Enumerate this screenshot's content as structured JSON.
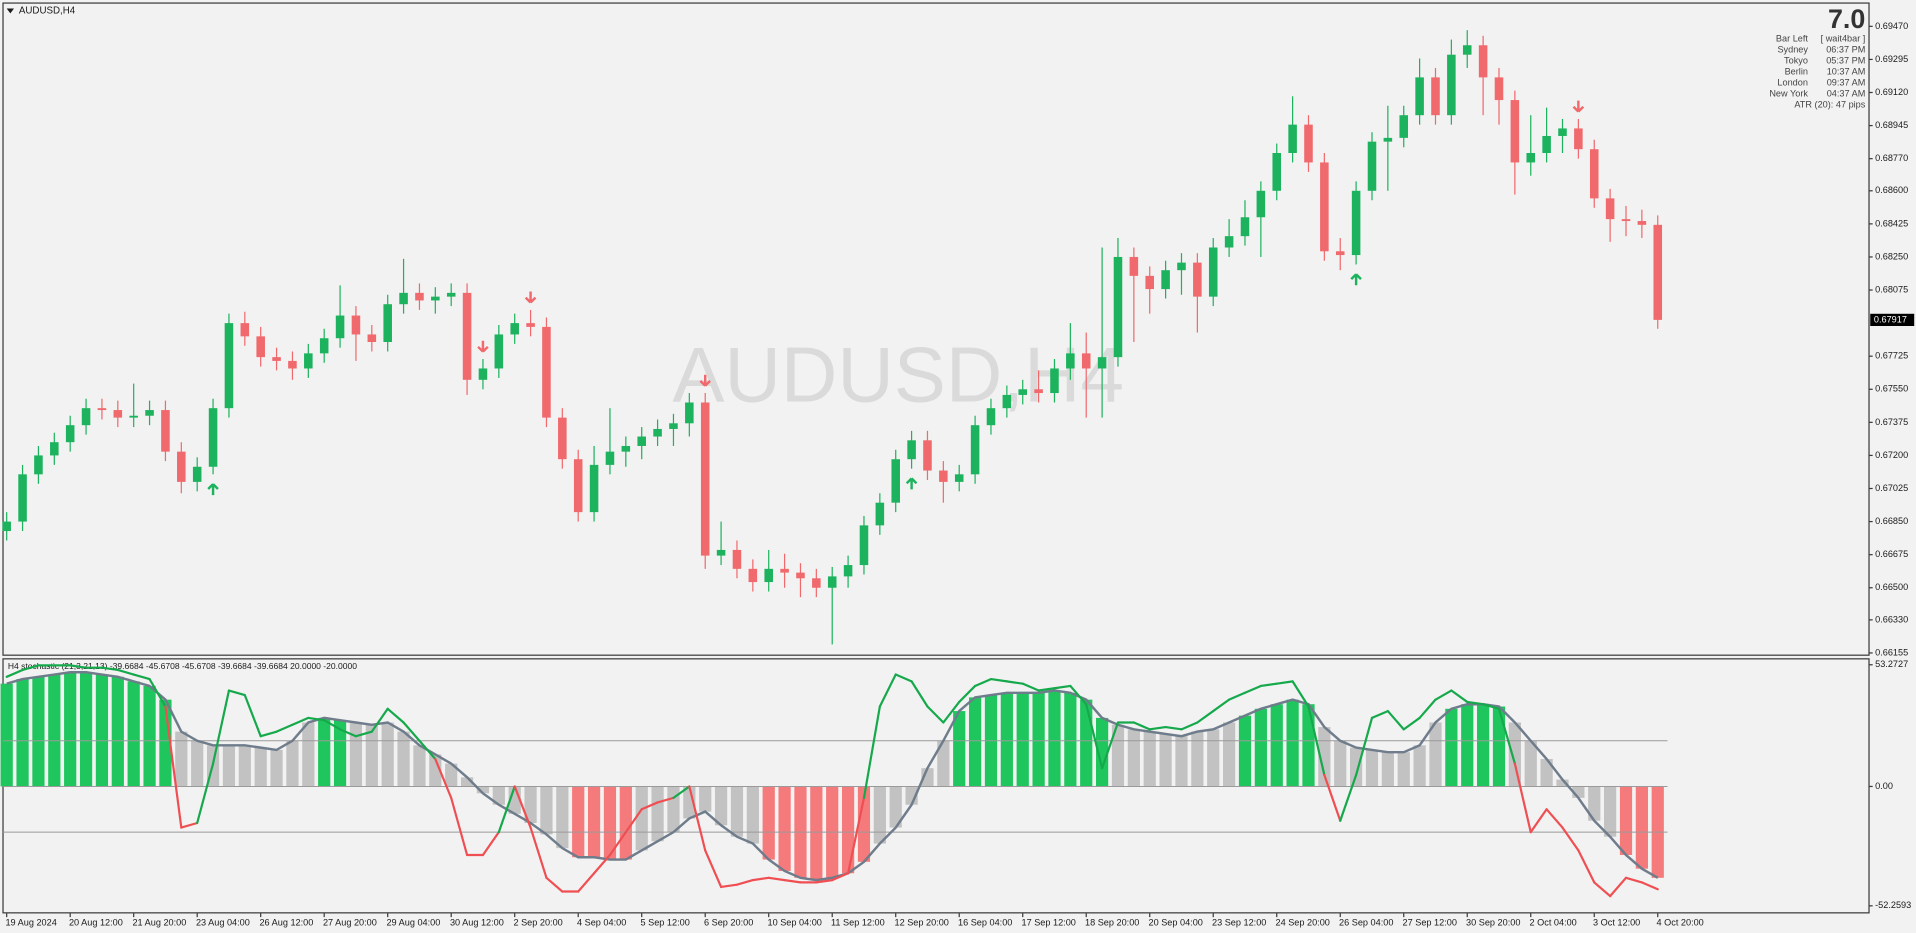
{
  "chart_data": [
    {
      "type": "candlestick",
      "title": "AUDUSD,H4",
      "watermark": "AUDUSD,H4",
      "categories": [
        "19 Aug 2024",
        null,
        null,
        null,
        "20 Aug 12:00",
        null,
        null,
        null,
        "21 Aug 20:00",
        null,
        null,
        null,
        "23 Aug 04:00",
        null,
        null,
        null,
        "26 Aug 12:00",
        null,
        null,
        null,
        "27 Aug 20:00",
        null,
        null,
        null,
        "29 Aug 04:00",
        null,
        null,
        null,
        "30 Aug 12:00",
        null,
        null,
        null,
        "2 Sep 20:00",
        null,
        null,
        null,
        "4 Sep 04:00",
        null,
        null,
        null,
        "5 Sep 12:00",
        null,
        null,
        null,
        "6 Sep 20:00",
        null,
        null,
        null,
        "10 Sep 04:00",
        null,
        null,
        null,
        "11 Sep 12:00",
        null,
        null,
        null,
        "12 Sep 20:00",
        null,
        null,
        null,
        "16 Sep 04:00",
        null,
        null,
        null,
        "17 Sep 12:00",
        null,
        null,
        null,
        "18 Sep 20:00",
        null,
        null,
        null,
        "20 Sep 04:00",
        null,
        null,
        null,
        "23 Sep 12:00",
        null,
        null,
        null,
        "24 Sep 20:00",
        null,
        null,
        null,
        "26 Sep 04:00",
        null,
        null,
        null,
        "27 Sep 12:00",
        null,
        null,
        null,
        "30 Sep 20:00",
        null,
        null,
        null,
        "2 Oct 04:00",
        null,
        null,
        null,
        "3 Oct 12:00",
        null,
        null,
        null,
        "4 Oct 20:00"
      ],
      "open": [
        0.668,
        0.6685,
        0.671,
        0.672,
        0.6727,
        0.6736,
        0.6745,
        0.6744,
        0.674,
        0.6741,
        0.6744,
        0.6722,
        0.6706,
        0.6714,
        0.6745,
        0.679,
        0.6783,
        0.6772,
        0.677,
        0.6766,
        0.6774,
        0.6782,
        0.6794,
        0.6784,
        0.678,
        0.68,
        0.6806,
        0.6802,
        0.6804,
        0.6806,
        0.676,
        0.6766,
        0.6784,
        0.679,
        0.6788,
        0.674,
        0.6718,
        0.669,
        0.6715,
        0.6722,
        0.6725,
        0.673,
        0.6734,
        0.6737,
        0.6748,
        0.6667,
        0.667,
        0.666,
        0.6653,
        0.666,
        0.6658,
        0.6655,
        0.665,
        0.6656,
        0.6662,
        0.6683,
        0.6695,
        0.6718,
        0.6728,
        0.6712,
        0.6706,
        0.671,
        0.6736,
        0.6745,
        0.6752,
        0.6755,
        0.6753,
        0.6766,
        0.6774,
        0.6766,
        0.6772,
        0.6825,
        0.6815,
        0.6808,
        0.6818,
        0.6822,
        0.6804,
        0.683,
        0.6836,
        0.6846,
        0.686,
        0.688,
        0.6895,
        0.6875,
        0.6828,
        0.6826,
        0.686,
        0.6886,
        0.6888,
        0.69,
        0.692,
        0.69,
        0.6932,
        0.6937,
        0.692,
        0.6908,
        0.6875,
        0.688,
        0.6889,
        0.6893,
        0.6882,
        0.6856,
        0.6845,
        0.6844,
        0.6842
      ],
      "high": [
        0.669,
        0.6715,
        0.6725,
        0.6732,
        0.6741,
        0.675,
        0.675,
        0.6749,
        0.6758,
        0.6749,
        0.6749,
        0.6727,
        0.6719,
        0.675,
        0.6795,
        0.6796,
        0.6788,
        0.6777,
        0.6775,
        0.6779,
        0.6787,
        0.681,
        0.6799,
        0.6789,
        0.6805,
        0.6824,
        0.6811,
        0.6809,
        0.6811,
        0.6811,
        0.6771,
        0.6789,
        0.6795,
        0.6797,
        0.6793,
        0.6745,
        0.6723,
        0.6725,
        0.6745,
        0.673,
        0.6735,
        0.6739,
        0.6742,
        0.6753,
        0.6753,
        0.6685,
        0.6675,
        0.6665,
        0.667,
        0.6668,
        0.6663,
        0.666,
        0.6661,
        0.6667,
        0.6688,
        0.67,
        0.6723,
        0.6733,
        0.6733,
        0.6717,
        0.6715,
        0.6741,
        0.675,
        0.6757,
        0.676,
        0.6765,
        0.6771,
        0.679,
        0.6785,
        0.683,
        0.6835,
        0.683,
        0.682,
        0.6823,
        0.6827,
        0.6827,
        0.6835,
        0.6845,
        0.6855,
        0.6865,
        0.6885,
        0.691,
        0.69,
        0.688,
        0.6835,
        0.6865,
        0.6891,
        0.6905,
        0.6905,
        0.693,
        0.6925,
        0.694,
        0.6945,
        0.6942,
        0.6925,
        0.6913,
        0.69,
        0.6904,
        0.6898,
        0.6898,
        0.6887,
        0.6861,
        0.6852,
        0.685,
        0.6847
      ],
      "low": [
        0.6675,
        0.668,
        0.6705,
        0.6715,
        0.6722,
        0.6731,
        0.6739,
        0.6735,
        0.6735,
        0.6736,
        0.6717,
        0.67,
        0.6701,
        0.671,
        0.674,
        0.6778,
        0.6767,
        0.6765,
        0.676,
        0.6761,
        0.6769,
        0.6777,
        0.677,
        0.6775,
        0.6775,
        0.6795,
        0.6797,
        0.6795,
        0.6799,
        0.6752,
        0.6755,
        0.6761,
        0.6779,
        0.6783,
        0.6735,
        0.6713,
        0.6685,
        0.6685,
        0.671,
        0.6714,
        0.6718,
        0.6725,
        0.6725,
        0.673,
        0.666,
        0.6662,
        0.6655,
        0.6648,
        0.6648,
        0.665,
        0.6645,
        0.6645,
        0.662,
        0.665,
        0.6657,
        0.6678,
        0.669,
        0.6713,
        0.6707,
        0.6695,
        0.6701,
        0.6705,
        0.6731,
        0.674,
        0.6747,
        0.6748,
        0.6748,
        0.676,
        0.674,
        0.674,
        0.6767,
        0.678,
        0.6795,
        0.6803,
        0.6805,
        0.6785,
        0.6799,
        0.6825,
        0.6831,
        0.6825,
        0.6855,
        0.6875,
        0.687,
        0.6823,
        0.6818,
        0.6821,
        0.6855,
        0.686,
        0.6883,
        0.6895,
        0.6895,
        0.6895,
        0.6925,
        0.69,
        0.6895,
        0.6858,
        0.6868,
        0.6875,
        0.688,
        0.6877,
        0.6851,
        0.6833,
        0.6836,
        0.6835,
        0.6787
      ],
      "close": [
        0.6685,
        0.671,
        0.672,
        0.6727,
        0.6736,
        0.6745,
        0.6744,
        0.674,
        0.6741,
        0.6744,
        0.6722,
        0.6706,
        0.6714,
        0.6745,
        0.679,
        0.6783,
        0.6772,
        0.677,
        0.6766,
        0.6774,
        0.6782,
        0.6794,
        0.6784,
        0.678,
        0.68,
        0.6806,
        0.6802,
        0.6804,
        0.6806,
        0.676,
        0.6766,
        0.6784,
        0.679,
        0.6788,
        0.674,
        0.6718,
        0.669,
        0.6715,
        0.6722,
        0.6725,
        0.673,
        0.6734,
        0.6737,
        0.6748,
        0.6667,
        0.667,
        0.666,
        0.6653,
        0.666,
        0.6658,
        0.6655,
        0.665,
        0.6656,
        0.6662,
        0.6683,
        0.6695,
        0.6718,
        0.6728,
        0.6712,
        0.6706,
        0.671,
        0.6736,
        0.6745,
        0.6752,
        0.6755,
        0.6753,
        0.6766,
        0.6774,
        0.6766,
        0.6772,
        0.6825,
        0.6815,
        0.6808,
        0.6818,
        0.6822,
        0.6804,
        0.683,
        0.6836,
        0.6846,
        0.686,
        0.688,
        0.6895,
        0.6875,
        0.6828,
        0.6826,
        0.686,
        0.6886,
        0.6888,
        0.69,
        0.692,
        0.69,
        0.6932,
        0.6937,
        0.692,
        0.6908,
        0.6875,
        0.688,
        0.6889,
        0.6893,
        0.6882,
        0.6856,
        0.6845,
        0.6844,
        0.6842,
        0.67917
      ],
      "up_color": "#1db35e",
      "down_color": "#f0696d",
      "buy_arrows": [
        13,
        57,
        85
      ],
      "sell_arrows": [
        30,
        33,
        44,
        99
      ],
      "last_price": 0.67917,
      "ylim": [
        0.6614,
        0.6959
      ],
      "yticks": [
        {
          "value": 0.6947,
          "label": "0.69470"
        },
        {
          "value": 0.69295,
          "label": "0.69295"
        },
        {
          "value": 0.6912,
          "label": "0.69120"
        },
        {
          "value": 0.68945,
          "label": "0.68945"
        },
        {
          "value": 0.6877,
          "label": "0.68770"
        },
        {
          "value": 0.686,
          "label": "0.68600"
        },
        {
          "value": 0.68425,
          "label": "0.68425"
        },
        {
          "value": 0.6825,
          "label": "0.68250"
        },
        {
          "value": 0.68075,
          "label": "0.68075"
        },
        {
          "value": 0.67725,
          "label": "0.67725"
        },
        {
          "value": 0.6755,
          "label": "0.67550"
        },
        {
          "value": 0.67375,
          "label": "0.67375"
        },
        {
          "value": 0.672,
          "label": "0.67200"
        },
        {
          "value": 0.67025,
          "label": "0.67025"
        },
        {
          "value": 0.6685,
          "label": "0.66850"
        },
        {
          "value": 0.66675,
          "label": "0.66675"
        },
        {
          "value": 0.665,
          "label": "0.66500"
        },
        {
          "value": 0.6633,
          "label": "0.66330"
        },
        {
          "value": 0.66155,
          "label": "0.66155"
        }
      ]
    },
    {
      "type": "stochastic_histogram",
      "title": "H4 stochastic (21,3,21,13) -39.6684 -45.6708 -45.6708 -39.6684 -39.6684 20.0000 -20.0000",
      "values": [
        45,
        47,
        48,
        49,
        50,
        50,
        49,
        48,
        46,
        44,
        38,
        24,
        20,
        18,
        18,
        18,
        17,
        16,
        20,
        28,
        30,
        29,
        28,
        27,
        28,
        24,
        18,
        14,
        10,
        4,
        -3,
        -8,
        -12,
        -16,
        -21,
        -27,
        -31,
        -31,
        -32,
        -32,
        -28,
        -24,
        -20,
        -14,
        -11,
        -17,
        -22,
        -25,
        -32,
        -37,
        -40,
        -41,
        -40,
        -38,
        -33,
        -25,
        -18,
        -8,
        8,
        20,
        33,
        39,
        40,
        41,
        41,
        41,
        42,
        41,
        38,
        30,
        27,
        25,
        24,
        23,
        22,
        24,
        25,
        28,
        31,
        34,
        36,
        38,
        36,
        26,
        20,
        17,
        16,
        15,
        15,
        18,
        28,
        34,
        36,
        36,
        35,
        28,
        20,
        12,
        3,
        -5,
        -15,
        -22,
        -30,
        -36,
        -40
      ],
      "line_values": [
        48,
        51,
        53,
        53,
        53,
        52,
        52,
        51,
        49,
        47,
        35,
        -18,
        -16,
        10,
        42,
        40,
        22,
        24,
        27,
        30,
        29,
        25,
        22,
        24,
        34,
        28,
        20,
        12,
        -5,
        -30,
        -30,
        -20,
        0,
        -18,
        -40,
        -46,
        -46,
        -38,
        -30,
        -20,
        -10,
        -7,
        -5,
        0,
        -28,
        -44,
        -43,
        -41,
        -40,
        -41,
        -42,
        -42,
        -41,
        -38,
        -5,
        35,
        49,
        46,
        35,
        28,
        37,
        44,
        47,
        46,
        45,
        42,
        43,
        44,
        36,
        8,
        28,
        28,
        25,
        26,
        25,
        28,
        33,
        38,
        41,
        44,
        45,
        46,
        35,
        5,
        -15,
        5,
        30,
        33,
        25,
        30,
        38,
        42,
        37,
        36,
        34,
        10,
        -20,
        -10,
        -18,
        -28,
        -42,
        -48,
        -40,
        -42,
        -45
      ],
      "bar_colors": [
        "#1fc65e",
        "#1fc65e",
        "#1fc65e",
        "#1fc65e",
        "#1fc65e",
        "#1fc65e",
        "#1fc65e",
        "#1fc65e",
        "#1fc65e",
        "#1fc65e",
        "#1fc65e",
        "#c2c2c2",
        "#c2c2c2",
        "#c2c2c2",
        "#c2c2c2",
        "#c2c2c2",
        "#c2c2c2",
        "#c2c2c2",
        "#c2c2c2",
        "#c2c2c2",
        "#1fc65e",
        "#1fc65e",
        "#c2c2c2",
        "#c2c2c2",
        "#c2c2c2",
        "#c2c2c2",
        "#c2c2c2",
        "#c2c2c2",
        "#c2c2c2",
        "#c2c2c2",
        "#c2c2c2",
        "#c2c2c2",
        "#c2c2c2",
        "#c2c2c2",
        "#c2c2c2",
        "#c2c2c2",
        "#f47a7c",
        "#f47a7c",
        "#f47a7c",
        "#f47a7c",
        "#c2c2c2",
        "#c2c2c2",
        "#c2c2c2",
        "#c2c2c2",
        "#c2c2c2",
        "#c2c2c2",
        "#c2c2c2",
        "#c2c2c2",
        "#f47a7c",
        "#f47a7c",
        "#f47a7c",
        "#f47a7c",
        "#f47a7c",
        "#f47a7c",
        "#f47a7c",
        "#c2c2c2",
        "#c2c2c2",
        "#c2c2c2",
        "#c2c2c2",
        "#c2c2c2",
        "#1fc65e",
        "#1fc65e",
        "#1fc65e",
        "#1fc65e",
        "#1fc65e",
        "#1fc65e",
        "#1fc65e",
        "#1fc65e",
        "#1fc65e",
        "#1fc65e",
        "#c2c2c2",
        "#c2c2c2",
        "#c2c2c2",
        "#c2c2c2",
        "#c2c2c2",
        "#c2c2c2",
        "#c2c2c2",
        "#c2c2c2",
        "#1fc65e",
        "#1fc65e",
        "#1fc65e",
        "#1fc65e",
        "#1fc65e",
        "#c2c2c2",
        "#c2c2c2",
        "#c2c2c2",
        "#c2c2c2",
        "#c2c2c2",
        "#c2c2c2",
        "#c2c2c2",
        "#c2c2c2",
        "#1fc65e",
        "#1fc65e",
        "#1fc65e",
        "#1fc65e",
        "#c2c2c2",
        "#c2c2c2",
        "#c2c2c2",
        "#c2c2c2",
        "#c2c2c2",
        "#c2c2c2",
        "#c2c2c2",
        "#f47a7c",
        "#f47a7c",
        "#f47a7c"
      ],
      "line_color": "#6f7c8b",
      "line_up_color": "#16a94c",
      "line_down_color": "#ef4f52",
      "levels": [
        20,
        -20
      ],
      "ylim": [
        -55.6,
        55.6
      ],
      "yticks": [
        53.2727,
        {
          "value": 0,
          "label": "0.00"
        },
        -52.2593
      ]
    }
  ],
  "info_panel": {
    "countdown": "7.0",
    "rows": [
      [
        "Bar Left",
        "[ wait4bar ]"
      ],
      [
        "Sydney",
        "06:37 PM"
      ],
      [
        "Tokyo",
        "05:37 PM"
      ],
      [
        "Berlin",
        "10:37 AM"
      ],
      [
        "London",
        "09:37 AM"
      ],
      [
        "New York",
        "04:37 AM"
      ]
    ],
    "atr": "ATR (20): 47 pips"
  }
}
